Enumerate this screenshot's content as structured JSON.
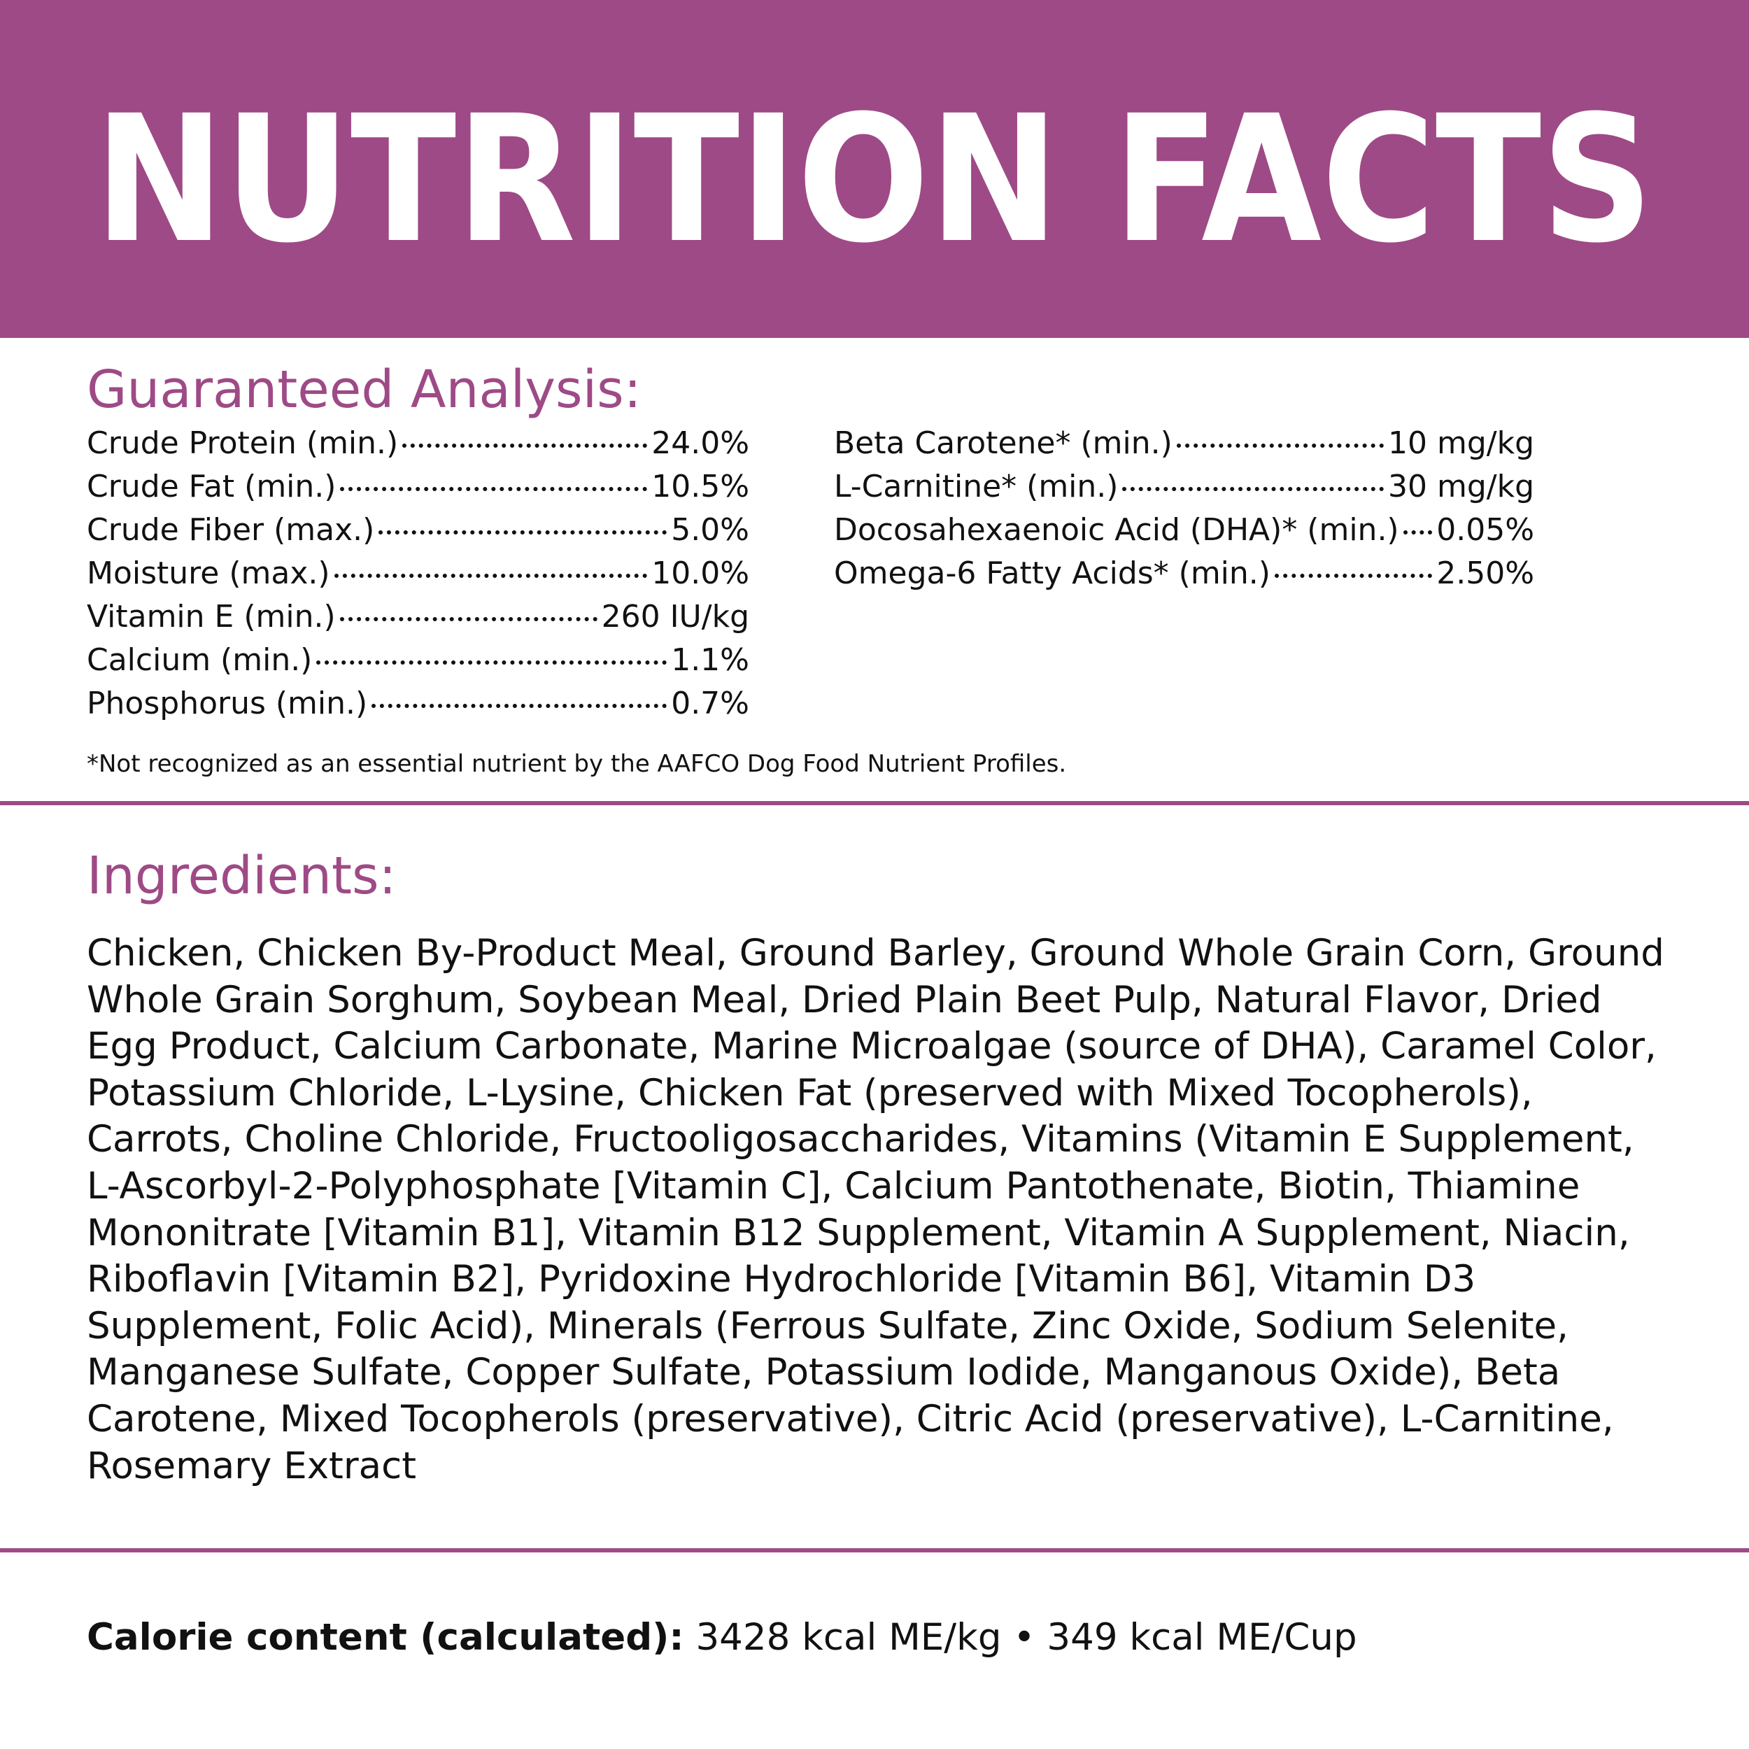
{
  "header": {
    "title": "NUTRITION FACTS"
  },
  "guaranteed_analysis": {
    "title": "Guaranteed Analysis:",
    "left": [
      {
        "label": "Crude Protein (min.)",
        "value": "24.0%"
      },
      {
        "label": "Crude Fat (min.)",
        "value": "10.5%"
      },
      {
        "label": "Crude Fiber (max.)",
        "value": "5.0%"
      },
      {
        "label": "Moisture (max.)",
        "value": "10.0%"
      },
      {
        "label": "Vitamin E (min.)",
        "value": "260 IU/kg"
      },
      {
        "label": "Calcium (min.)",
        "value": "1.1%"
      },
      {
        "label": "Phosphorus (min.)",
        "value": "0.7%"
      }
    ],
    "right": [
      {
        "label": "Beta Carotene* (min.)",
        "value": "10 mg/kg"
      },
      {
        "label": "L-Carnitine* (min.)",
        "value": "30 mg/kg"
      },
      {
        "label": "Docosahexaenoic Acid (DHA)* (min.)",
        "value": "0.05%"
      },
      {
        "label": "Omega-6 Fatty Acids* (min.)",
        "value": "2.50%"
      }
    ],
    "footnote": "*Not recognized as an essential nutrient by the AAFCO Dog Food Nutrient Profiles."
  },
  "ingredients": {
    "title": "Ingredients:",
    "text": "Chicken, Chicken By-Product Meal, Ground Barley, Ground Whole Grain Corn, Ground Whole Grain Sorghum, Soybean Meal, Dried Plain Beet Pulp, Natural Flavor, Dried Egg Product, Calcium Carbonate, Marine Microalgae (source of DHA), Caramel Color, Potassium Chloride, L-Lysine, Chicken Fat (preserved with Mixed Tocopherols), Carrots, Choline Chloride, Fructooligosaccharides, Vitamins (Vitamin E Supplement, L-Ascorbyl-2-Polyphosphate [Vitamin C], Calcium Pantothenate, Biotin, Thiamine Mononitrate [Vitamin B1], Vitamin B12 Supplement, Vitamin A Supplement, Niacin, Riboflavin [Vitamin B2], Pyridoxine Hydrochloride [Vitamin B6], Vitamin D3 Supplement, Folic Acid), Minerals (Ferrous Sulfate, Zinc Oxide, Sodium Selenite, Manganese Sulfate, Copper Sulfate, Potassium Iodide, Manganous Oxide), Beta Carotene, Mixed Tocopherols (preservative), Citric Acid (preservative), L-Carnitine, Rosemary Extract"
  },
  "calorie": {
    "label": "Calorie content (calculated):",
    "text": "3428 kcal ME/kg • 349 kcal ME/Cup"
  }
}
